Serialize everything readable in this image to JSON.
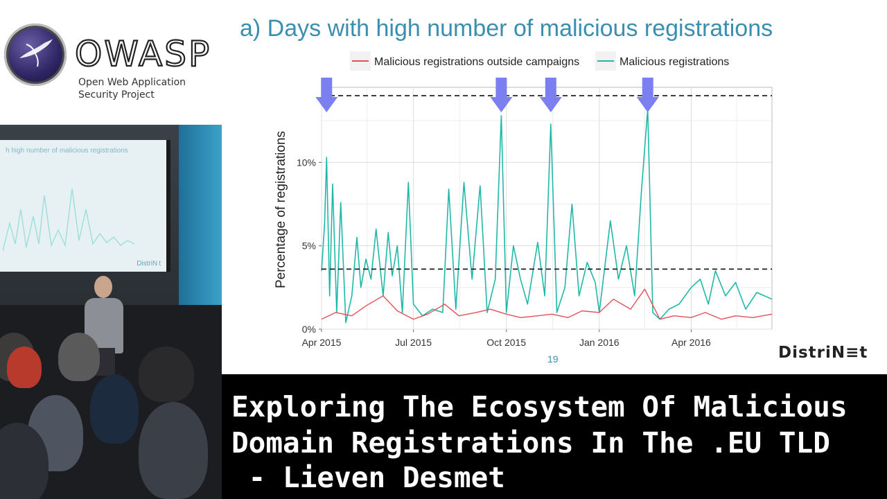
{
  "logo": {
    "word": "OWASP",
    "line1": "Open Web Application",
    "line2": "Security Project"
  },
  "video": {
    "screen_title": "h high number of malicious registrations",
    "screen_brand": "DistriN t"
  },
  "slide": {
    "title": "a) Days with high number of malicious registrations",
    "page_number": "19",
    "brand": "DistriN≡t"
  },
  "caption": {
    "line1": "Exploring The Ecosystem Of Malicious",
    "line2": "Domain Registrations In The .EU TLD",
    "line3": " - Lieven Desmet"
  },
  "colors": {
    "slide_title": "#3a8fb0",
    "malicious": "#1fb8a8",
    "outside": "#e05256",
    "arrow": "#7b7ff0"
  },
  "chart_data": {
    "type": "line",
    "ylabel": "Percentage of registrations",
    "xlabel": "",
    "x_ticks": [
      "Apr 2015",
      "Jul 2015",
      "Oct 2015",
      "Jan 2016",
      "Apr 2016"
    ],
    "y_ticks": [
      "0%",
      "5%",
      "10%"
    ],
    "ylim": [
      0,
      14.5
    ],
    "xlim": [
      "2015-04-01",
      "2016-06-20"
    ],
    "grid": true,
    "legend_position": "top",
    "thresholds": [
      3.6,
      14.0
    ],
    "arrows_at": [
      "2015-04-06",
      "2015-09-26",
      "2015-11-14",
      "2016-02-18"
    ],
    "series": [
      {
        "name": "Malicious registrations outside campaigns",
        "color": "#e05256",
        "points": [
          [
            "2015-04-01",
            0.6
          ],
          [
            "2015-04-15",
            1.0
          ],
          [
            "2015-05-01",
            0.8
          ],
          [
            "2015-05-15",
            1.4
          ],
          [
            "2015-06-01",
            2.0
          ],
          [
            "2015-06-15",
            1.1
          ],
          [
            "2015-07-01",
            0.6
          ],
          [
            "2015-07-15",
            0.9
          ],
          [
            "2015-08-01",
            1.5
          ],
          [
            "2015-08-15",
            0.8
          ],
          [
            "2015-09-01",
            1.0
          ],
          [
            "2015-09-15",
            1.2
          ],
          [
            "2015-10-01",
            0.9
          ],
          [
            "2015-10-15",
            0.7
          ],
          [
            "2015-11-01",
            0.8
          ],
          [
            "2015-11-15",
            0.9
          ],
          [
            "2015-12-01",
            0.7
          ],
          [
            "2015-12-15",
            1.1
          ],
          [
            "2016-01-01",
            1.0
          ],
          [
            "2016-01-15",
            1.8
          ],
          [
            "2016-02-01",
            1.2
          ],
          [
            "2016-02-15",
            2.4
          ],
          [
            "2016-03-01",
            0.6
          ],
          [
            "2016-03-15",
            0.8
          ],
          [
            "2016-04-01",
            0.7
          ],
          [
            "2016-04-15",
            1.0
          ],
          [
            "2016-05-01",
            0.6
          ],
          [
            "2016-05-15",
            0.8
          ],
          [
            "2016-06-01",
            0.7
          ],
          [
            "2016-06-20",
            0.9
          ]
        ]
      },
      {
        "name": "Malicious registrations",
        "color": "#1fb8a8",
        "points": [
          [
            "2015-04-01",
            3.5
          ],
          [
            "2015-04-04",
            6.3
          ],
          [
            "2015-04-06",
            10.3
          ],
          [
            "2015-04-09",
            2.0
          ],
          [
            "2015-04-12",
            8.7
          ],
          [
            "2015-04-16",
            1.0
          ],
          [
            "2015-04-20",
            7.6
          ],
          [
            "2015-04-25",
            0.4
          ],
          [
            "2015-05-01",
            2.0
          ],
          [
            "2015-05-06",
            5.5
          ],
          [
            "2015-05-10",
            2.5
          ],
          [
            "2015-05-15",
            4.2
          ],
          [
            "2015-05-20",
            3.0
          ],
          [
            "2015-05-25",
            6.0
          ],
          [
            "2015-06-01",
            2.0
          ],
          [
            "2015-06-06",
            5.8
          ],
          [
            "2015-06-10",
            3.2
          ],
          [
            "2015-06-15",
            5.0
          ],
          [
            "2015-06-20",
            1.0
          ],
          [
            "2015-06-26",
            8.8
          ],
          [
            "2015-07-01",
            1.5
          ],
          [
            "2015-07-10",
            0.8
          ],
          [
            "2015-07-20",
            1.2
          ],
          [
            "2015-07-30",
            1.0
          ],
          [
            "2015-08-05",
            8.4
          ],
          [
            "2015-08-12",
            1.2
          ],
          [
            "2015-08-20",
            8.8
          ],
          [
            "2015-08-28",
            3.0
          ],
          [
            "2015-09-05",
            8.6
          ],
          [
            "2015-09-12",
            1.0
          ],
          [
            "2015-09-20",
            3.0
          ],
          [
            "2015-09-26",
            12.8
          ],
          [
            "2015-10-01",
            1.0
          ],
          [
            "2015-10-08",
            5.0
          ],
          [
            "2015-10-15",
            3.0
          ],
          [
            "2015-10-22",
            1.5
          ],
          [
            "2015-11-01",
            5.2
          ],
          [
            "2015-11-08",
            2.0
          ],
          [
            "2015-11-14",
            12.3
          ],
          [
            "2015-11-20",
            1.0
          ],
          [
            "2015-11-28",
            2.5
          ],
          [
            "2015-12-05",
            7.5
          ],
          [
            "2015-12-12",
            2.0
          ],
          [
            "2015-12-20",
            4.0
          ],
          [
            "2015-12-28",
            2.8
          ],
          [
            "2016-01-01",
            1.0
          ],
          [
            "2016-01-05",
            3.0
          ],
          [
            "2016-01-12",
            6.5
          ],
          [
            "2016-01-20",
            3.0
          ],
          [
            "2016-01-28",
            5.0
          ],
          [
            "2016-02-05",
            2.0
          ],
          [
            "2016-02-12",
            8.5
          ],
          [
            "2016-02-18",
            13.2
          ],
          [
            "2016-02-23",
            1.0
          ],
          [
            "2016-03-01",
            0.6
          ],
          [
            "2016-03-10",
            1.2
          ],
          [
            "2016-03-20",
            1.5
          ],
          [
            "2016-04-01",
            2.5
          ],
          [
            "2016-04-10",
            3.0
          ],
          [
            "2016-04-18",
            1.5
          ],
          [
            "2016-04-25",
            3.5
          ],
          [
            "2016-05-05",
            2.0
          ],
          [
            "2016-05-15",
            2.8
          ],
          [
            "2016-05-25",
            1.2
          ],
          [
            "2016-06-05",
            2.2
          ],
          [
            "2016-06-20",
            1.8
          ]
        ]
      }
    ]
  }
}
